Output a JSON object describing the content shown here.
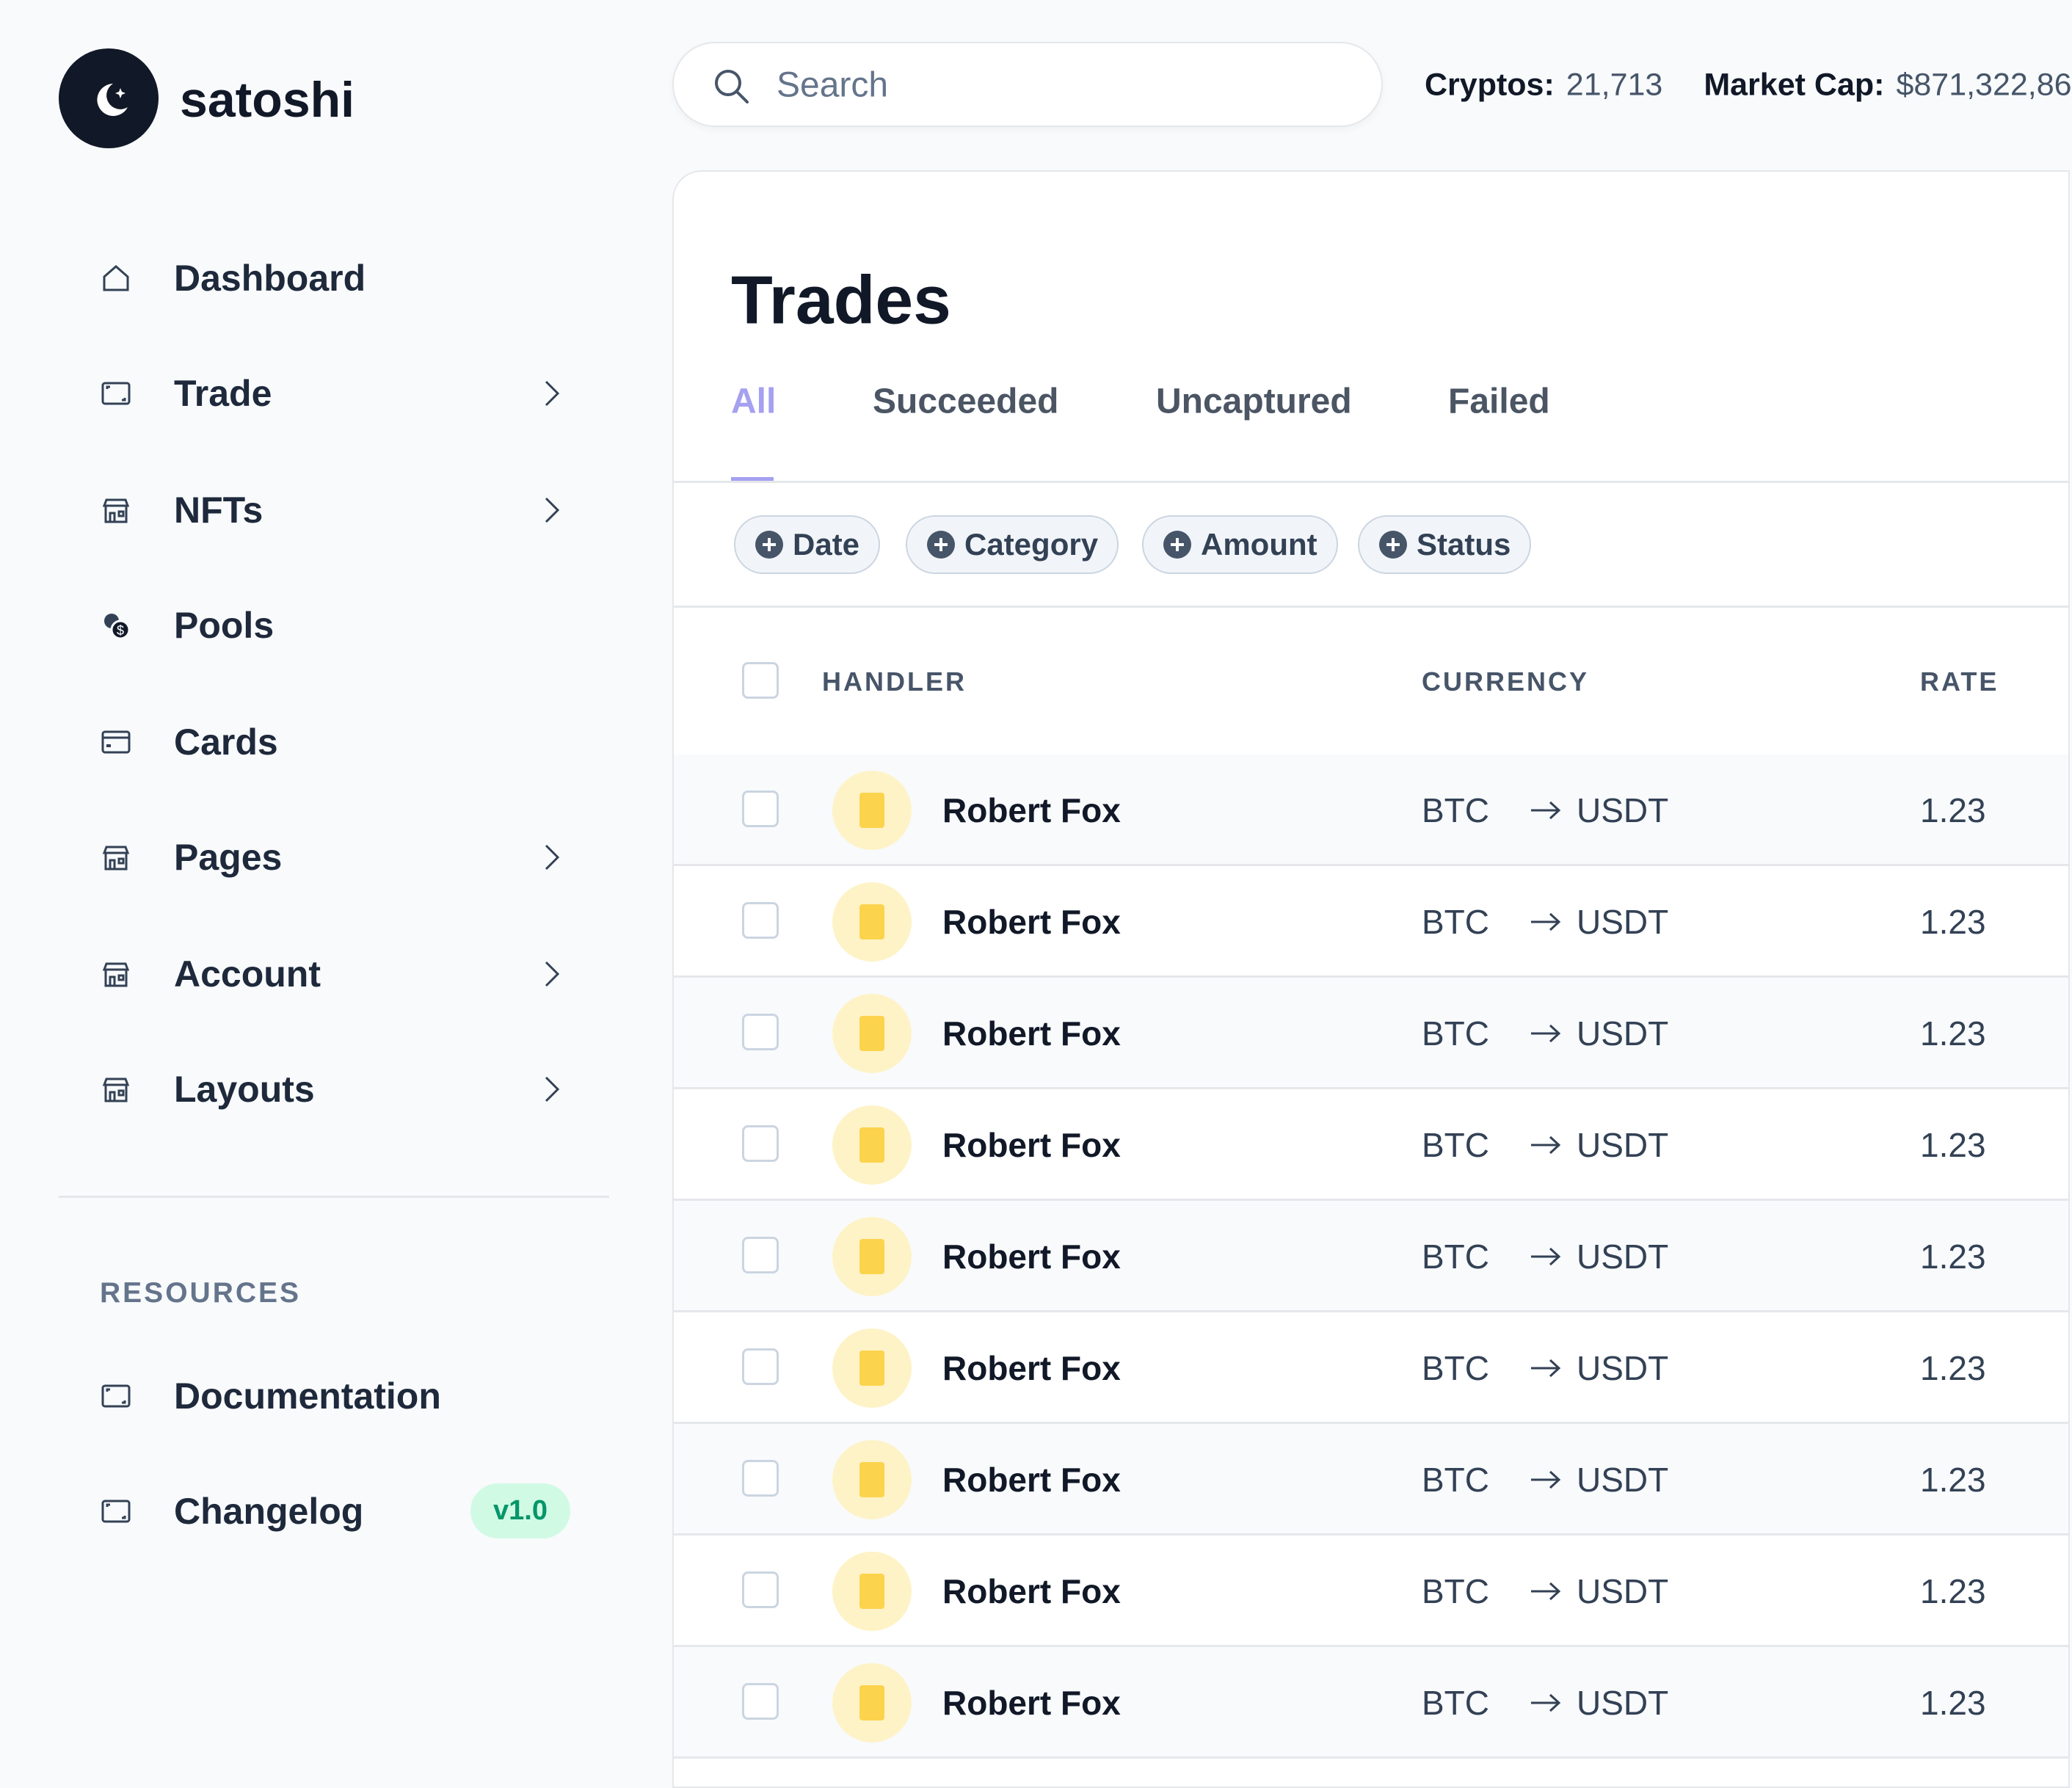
{
  "brand": {
    "name": "satoshi"
  },
  "topbar": {
    "search_placeholder": "Search",
    "stats": [
      {
        "label": "Cryptos:",
        "value": "21,713"
      },
      {
        "label": "Market Cap:",
        "value": "$871,322,86"
      }
    ]
  },
  "sidebar": {
    "nav": [
      "Dashboard",
      "Trade",
      "NFTs",
      "Pools",
      "Cards",
      "Pages",
      "Account",
      "Layouts"
    ],
    "resources_title": "RESOURCES",
    "resources": [
      "Documentation",
      "Changelog"
    ],
    "changelog_badge": "v1.0"
  },
  "main": {
    "title": "Trades",
    "tabs": [
      "All",
      "Succeeded",
      "Uncaptured",
      "Failed"
    ],
    "filters": [
      "Date",
      "Category",
      "Amount",
      "Status"
    ],
    "table": {
      "headers": [
        "HANDLER",
        "CURRENCY",
        "RATE"
      ],
      "rows": [
        {
          "handler": "Robert Fox",
          "from": "BTC",
          "to": "USDT",
          "rate": "1.23"
        },
        {
          "handler": "Robert Fox",
          "from": "BTC",
          "to": "USDT",
          "rate": "1.23"
        },
        {
          "handler": "Robert Fox",
          "from": "BTC",
          "to": "USDT",
          "rate": "1.23"
        },
        {
          "handler": "Robert Fox",
          "from": "BTC",
          "to": "USDT",
          "rate": "1.23"
        },
        {
          "handler": "Robert Fox",
          "from": "BTC",
          "to": "USDT",
          "rate": "1.23"
        },
        {
          "handler": "Robert Fox",
          "from": "BTC",
          "to": "USDT",
          "rate": "1.23"
        },
        {
          "handler": "Robert Fox",
          "from": "BTC",
          "to": "USDT",
          "rate": "1.23"
        },
        {
          "handler": "Robert Fox",
          "from": "BTC",
          "to": "USDT",
          "rate": "1.23"
        },
        {
          "handler": "Robert Fox",
          "from": "BTC",
          "to": "USDT",
          "rate": "1.23"
        }
      ]
    }
  }
}
